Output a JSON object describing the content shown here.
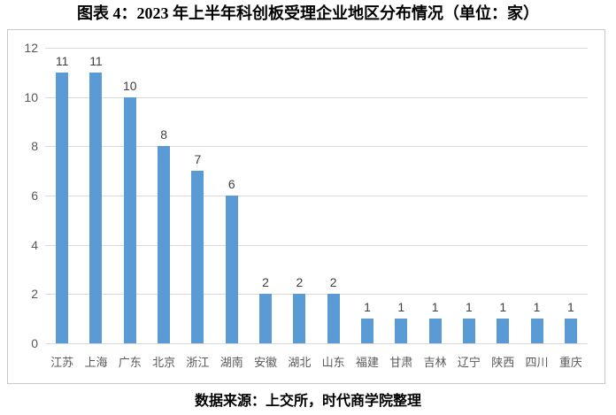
{
  "page": {
    "title": "图表 4：2023 年上半年科创板受理企业地区分布情况（单位：家）",
    "source_note": "数据来源：上交所，时代商学院整理"
  },
  "colors": {
    "bar": "#5b9bd5",
    "gridline": "#d9d9d9",
    "axis_label": "#595959",
    "data_label": "#3f3f3f",
    "frame_border": "#c9c9c9",
    "title_text": "#000000"
  },
  "chart_data": {
    "type": "bar",
    "title": "图表 4：2023 年上半年科创板受理企业地区分布情况（单位：家）",
    "categories": [
      "江苏",
      "上海",
      "广东",
      "北京",
      "浙江",
      "湖南",
      "安徽",
      "湖北",
      "山东",
      "福建",
      "甘肃",
      "吉林",
      "辽宁",
      "陕西",
      "四川",
      "重庆"
    ],
    "values": [
      11,
      11,
      10,
      8,
      7,
      6,
      2,
      2,
      2,
      1,
      1,
      1,
      1,
      1,
      1,
      1
    ],
    "xlabel": "",
    "ylabel": "",
    "ylim": [
      0,
      12
    ],
    "yticks": [
      0,
      2,
      4,
      6,
      8,
      10,
      12
    ],
    "grid": true,
    "legend": "none",
    "data_labels": true,
    "source": "数据来源：上交所，时代商学院整理"
  }
}
